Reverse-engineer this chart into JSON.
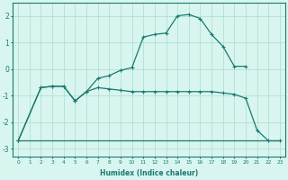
{
  "xlabel": "Humidex (Indice chaleur)",
  "line_color": "#1a7a6e",
  "bg_color": "#d8f5f0",
  "grid_color": "#aaddcc",
  "xlim": [
    -0.5,
    23.5
  ],
  "ylim": [
    -3.3,
    2.5
  ],
  "xticks": [
    0,
    1,
    2,
    3,
    4,
    5,
    6,
    7,
    8,
    9,
    10,
    11,
    12,
    13,
    14,
    15,
    16,
    17,
    18,
    19,
    20,
    21,
    22,
    23
  ],
  "yticks": [
    -3,
    -2,
    -1,
    0,
    1,
    2
  ],
  "curve1_x": [
    0,
    2,
    3,
    4,
    5,
    6,
    7,
    8,
    9,
    10,
    11,
    12,
    13,
    14,
    15,
    16,
    17,
    18,
    19,
    20
  ],
  "curve1_y": [
    -2.7,
    -0.7,
    -0.65,
    -0.65,
    -1.2,
    -0.85,
    -0.35,
    -0.25,
    -0.05,
    0.05,
    1.2,
    1.3,
    1.35,
    2.0,
    2.05,
    1.9,
    1.3,
    0.85,
    0.1,
    0.1
  ],
  "curve2_x": [
    0,
    2,
    3,
    4,
    5,
    6,
    7,
    8,
    9,
    10,
    11,
    12,
    13,
    14,
    15,
    16,
    17,
    18,
    19,
    20,
    21,
    22,
    23
  ],
  "curve2_y": [
    -2.7,
    -0.7,
    -0.65,
    -0.65,
    -1.2,
    -0.85,
    -0.7,
    -0.75,
    -0.8,
    -0.85,
    -0.85,
    -0.85,
    -0.85,
    -0.85,
    -0.85,
    -0.85,
    -0.85,
    -0.9,
    -0.95,
    -1.1,
    -2.3,
    -2.7,
    -2.7
  ],
  "curve3_x": [
    0,
    22,
    23
  ],
  "curve3_y": [
    -2.7,
    -2.7,
    -2.7
  ],
  "marker_style": "+",
  "marker_size": 3,
  "line_width": 0.9
}
